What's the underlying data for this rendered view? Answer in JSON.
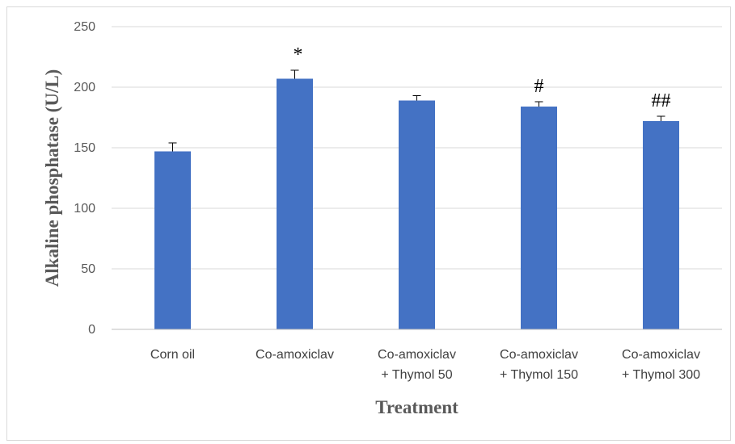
{
  "chart_data": {
    "type": "bar",
    "title": "",
    "xlabel": "Treatment",
    "ylabel": "Alkaline phosphatase (U/L)",
    "ylim": [
      0,
      250
    ],
    "yticks": [
      0,
      50,
      100,
      150,
      200,
      250
    ],
    "grid": true,
    "categories": [
      [
        "Corn oil"
      ],
      [
        "Co-amoxiclav"
      ],
      [
        "Co-amoxiclav",
        "+ Thymol 50"
      ],
      [
        "Co-amoxiclav",
        "+ Thymol 150"
      ],
      [
        "Co-amoxiclav",
        "+ Thymol 300"
      ]
    ],
    "values": [
      147,
      207,
      189,
      184,
      172
    ],
    "error": [
      7,
      7,
      4,
      4,
      4
    ],
    "annotations": [
      "",
      "*",
      "",
      "#",
      "##"
    ],
    "bar_color": "#4472c4"
  }
}
